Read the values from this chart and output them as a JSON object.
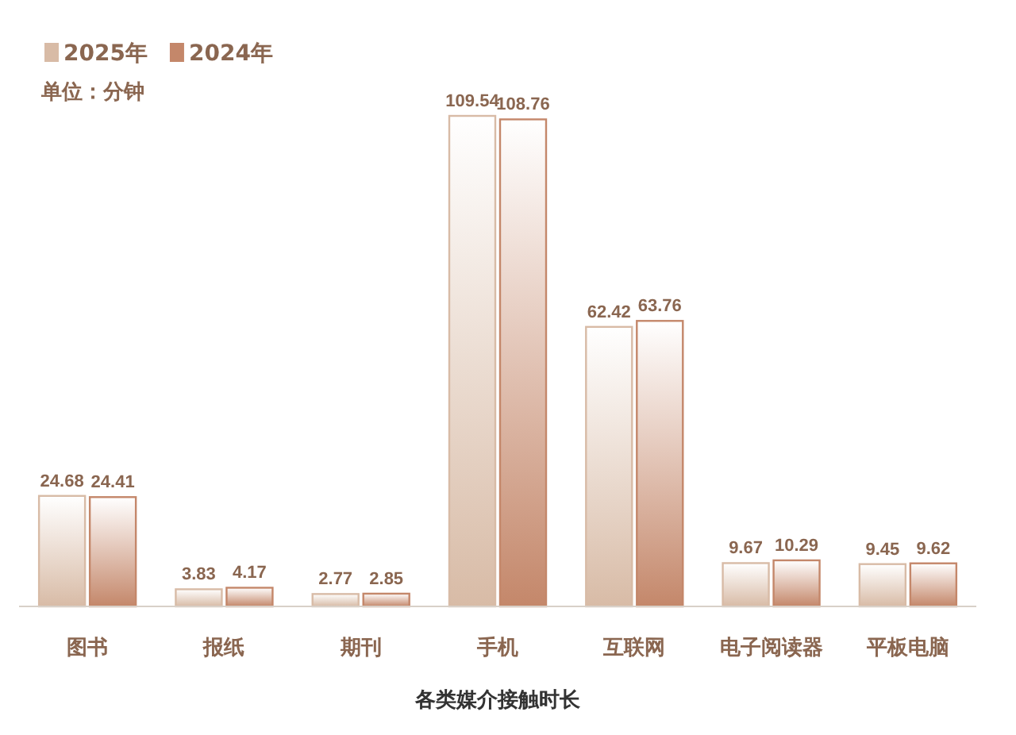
{
  "chart_data": {
    "type": "bar",
    "xlabel": "各类媒介接触时长",
    "annotations": [
      "单位：分钟"
    ],
    "categories": [
      "图书",
      "报纸",
      "期刊",
      "手机",
      "互联网",
      "电子阅读器",
      "平板电脑"
    ],
    "series": [
      {
        "name": "2025年",
        "color": "#d8bba6",
        "values": [
          24.68,
          3.83,
          2.77,
          109.54,
          62.42,
          9.67,
          9.45
        ]
      },
      {
        "name": "2024年",
        "color": "#c4876a",
        "values": [
          24.41,
          4.17,
          2.85,
          108.76,
          63.76,
          10.29,
          9.62
        ]
      }
    ],
    "data_labels": true,
    "legend": "top left"
  }
}
